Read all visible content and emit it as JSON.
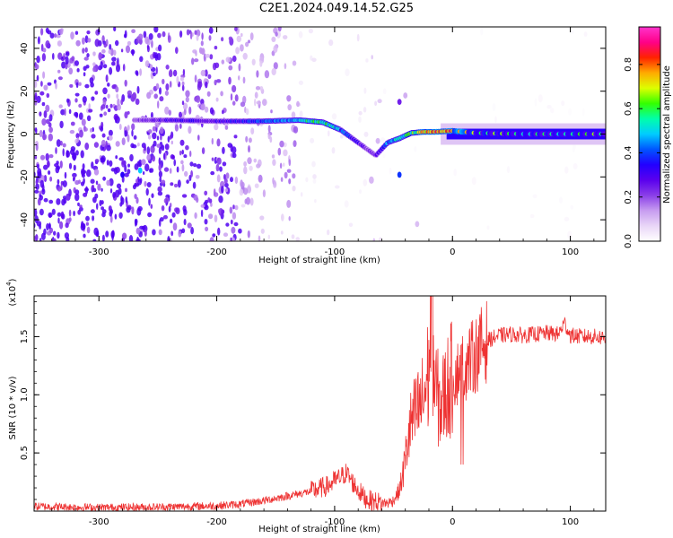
{
  "figure_title": "C2E1.2024.049.14.52.G25",
  "colors": {
    "snr_line": "#ee3333",
    "colormap": [
      "#ffffff",
      "#e9d6f7",
      "#c79cf0",
      "#8a3ee8",
      "#5a00ee",
      "#2200ff",
      "#0055ff",
      "#00ccff",
      "#00ffaa",
      "#33ff00",
      "#ddff00",
      "#ffaa00",
      "#ff2200",
      "#ff0088",
      "#ff33cc"
    ]
  },
  "chart_data": [
    {
      "type": "heatmap",
      "title": "",
      "xlabel": "Height of straight line (km)",
      "ylabel": "Frequency (Hz)",
      "xlim": [
        -355,
        130
      ],
      "ylim": [
        -50,
        50
      ],
      "xticks": [
        "-300",
        "-200",
        "-100",
        "0",
        "100"
      ],
      "yticks": [
        "-40",
        "-20",
        "0",
        "20",
        "40"
      ],
      "colorbar": {
        "label": "Normalized spectral amplitude",
        "range": [
          0.0,
          0.97
        ],
        "ticks": [
          "0.0",
          "0.2",
          "0.4",
          "0.6",
          "0.8"
        ]
      },
      "ridge": {
        "x": [
          -270,
          -240,
          -200,
          -160,
          -130,
          -110,
          -95,
          -85,
          -75,
          -65,
          -55,
          -45,
          -35,
          -25,
          -15,
          0,
          20,
          60,
          100,
          130
        ],
        "y": [
          6.5,
          6.5,
          6.0,
          6.0,
          6.5,
          5.5,
          2.0,
          -2.0,
          -6.0,
          -10.0,
          -4.0,
          -2.0,
          0.5,
          1.0,
          1.0,
          1.5,
          0.5,
          0.0,
          0.0,
          0.0
        ],
        "amplitude": [
          0.2,
          0.3,
          0.3,
          0.4,
          0.5,
          0.6,
          0.45,
          0.35,
          0.25,
          0.25,
          0.45,
          0.55,
          0.6,
          0.75,
          0.8,
          0.85,
          0.62,
          0.58,
          0.62,
          0.6
        ]
      }
    },
    {
      "type": "line",
      "title": "",
      "xlabel": "Height of straight line (km)",
      "ylabel": "SNR (10 * v/v)",
      "yscale_label": "(x10",
      "yscale_exp": "4",
      "xlim": [
        -355,
        130
      ],
      "ylim": [
        0,
        18500
      ],
      "xticks": [
        "-300",
        "-200",
        "-100",
        "0",
        "100"
      ],
      "yticks": [
        "0.5",
        "1.0",
        "1.5"
      ],
      "series": [
        {
          "x": [
            -355,
            -300,
            -250,
            -200,
            -180,
            -160,
            -140,
            -120,
            -105,
            -100,
            -95,
            -90,
            -85,
            -80,
            -75,
            -70,
            -65,
            -60,
            -55,
            -50,
            -45,
            -42,
            -40,
            -38,
            -35,
            -30,
            -25,
            -20,
            -18,
            -15,
            -10,
            -5,
            0,
            5,
            10,
            15,
            20,
            25,
            30,
            40,
            50,
            60,
            70,
            80,
            90,
            95,
            100,
            110,
            120,
            130
          ],
          "y": [
            400,
            300,
            350,
            450,
            600,
            900,
            1300,
            1700,
            2200,
            2600,
            2900,
            3300,
            2500,
            1800,
            1200,
            900,
            800,
            700,
            700,
            900,
            1800,
            3200,
            4500,
            6000,
            7500,
            8500,
            9500,
            12000,
            18500,
            10500,
            9000,
            10500,
            11500,
            12000,
            12500,
            13000,
            13500,
            14200,
            14700,
            15100,
            15200,
            15100,
            15200,
            15300,
            15200,
            16200,
            15100,
            15000,
            15000,
            14900
          ]
        }
      ]
    }
  ]
}
